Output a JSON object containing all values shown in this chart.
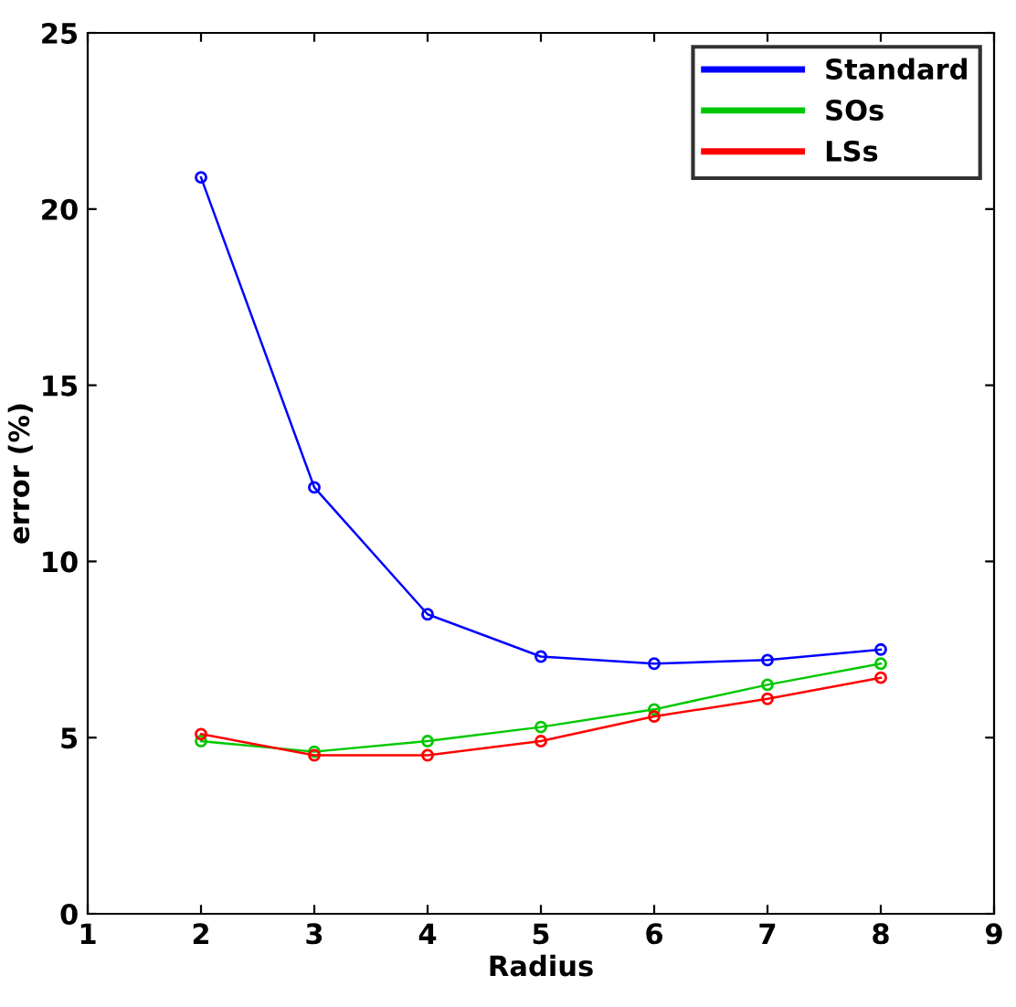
{
  "chart_data": {
    "type": "line",
    "xlabel": "Radius",
    "ylabel": "error (%)",
    "x": [
      2,
      3,
      4,
      5,
      6,
      7,
      8
    ],
    "series": [
      {
        "name": "Standard",
        "color": "#0000ff",
        "values": [
          20.9,
          12.1,
          8.5,
          7.3,
          7.1,
          7.2,
          7.5
        ]
      },
      {
        "name": "SOs",
        "color": "#00c800",
        "values": [
          4.9,
          4.6,
          4.9,
          5.3,
          5.8,
          6.5,
          7.1
        ]
      },
      {
        "name": "LSs",
        "color": "#ff0000",
        "values": [
          5.1,
          4.5,
          4.5,
          4.9,
          5.6,
          6.1,
          6.7
        ]
      }
    ],
    "xlim": [
      1,
      9
    ],
    "xticks": [
      1,
      2,
      3,
      4,
      5,
      6,
      7,
      8,
      9
    ],
    "ylim": [
      0,
      25
    ],
    "yticks": [
      0,
      5,
      10,
      15,
      20,
      25
    ],
    "marker": "circle",
    "line_style": "solid",
    "legend": "top right",
    "grid": false
  }
}
